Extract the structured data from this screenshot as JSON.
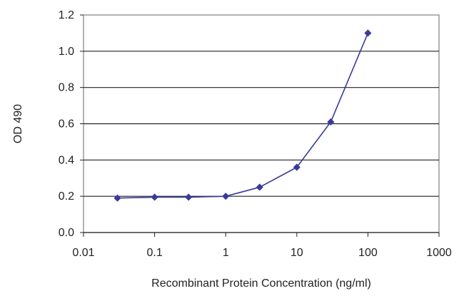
{
  "chart_data": {
    "type": "line",
    "title": "",
    "xlabel": "Recombinant Protein Concentration (ng/ml)",
    "ylabel": "OD 490",
    "xscale": "log",
    "xlim": [
      0.01,
      1000
    ],
    "ylim": [
      0.0,
      1.2
    ],
    "x_ticks": [
      0.01,
      0.1,
      1,
      10,
      100,
      1000
    ],
    "x_tick_labels": [
      "0.01",
      "0.1",
      "1",
      "10",
      "100",
      "1000"
    ],
    "y_ticks": [
      0.0,
      0.2,
      0.4,
      0.6,
      0.8,
      1.0,
      1.2
    ],
    "y_tick_labels": [
      "0.0",
      "0.2",
      "0.4",
      "0.6",
      "0.8",
      "1.0",
      "1.2"
    ],
    "grid": "horizontal",
    "legend": "none",
    "series": [
      {
        "color": "#3a3a9c",
        "marker": "diamond",
        "x": [
          0.03,
          0.1,
          0.3,
          1,
          3,
          10,
          30,
          100
        ],
        "y": [
          0.19,
          0.195,
          0.195,
          0.2,
          0.25,
          0.36,
          0.61,
          1.1
        ]
      }
    ],
    "colors": {
      "grid": "#222222",
      "frame": "#808080",
      "series": "#3a3a9c"
    }
  }
}
